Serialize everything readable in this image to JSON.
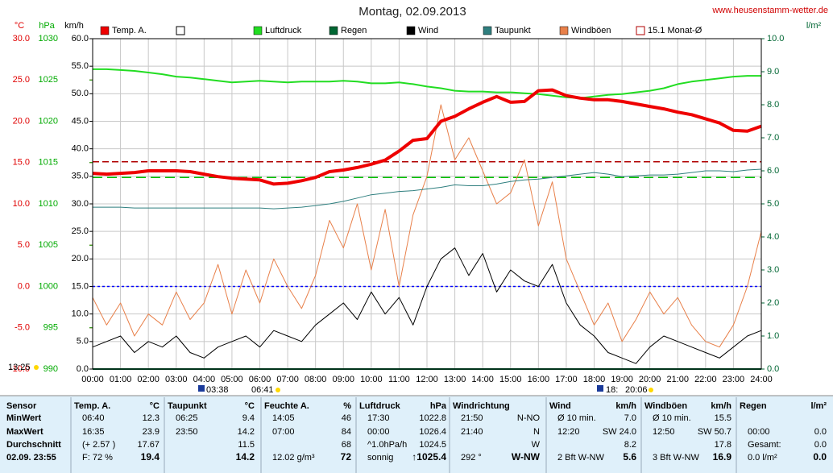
{
  "chart_data": {
    "type": "line",
    "title": "Montag, 02.09.2013",
    "source": "www.heusenstamm-wetter.de",
    "ylabel": "°C",
    "y2label": "hPa",
    "y3label": "km/h",
    "y4label": "l/m²",
    "x": [
      0,
      0.5,
      1,
      1.5,
      2,
      2.5,
      3,
      3.5,
      4,
      4.5,
      5,
      5.5,
      6,
      6.5,
      7,
      7.5,
      8,
      8.5,
      9,
      9.5,
      10,
      10.5,
      11,
      11.5,
      12,
      12.5,
      13,
      13.5,
      14,
      14.5,
      15,
      15.5,
      16,
      16.5,
      17,
      17.5,
      18,
      18.5,
      19,
      19.5,
      20,
      20.5,
      21,
      21.5,
      22,
      22.5,
      23,
      23.5,
      24
    ],
    "xlim": [
      0,
      24
    ],
    "xticks": [
      {
        "value": 0,
        "label": "00:00"
      },
      {
        "value": 1,
        "label": "01:00"
      },
      {
        "value": 2,
        "label": "02:00"
      },
      {
        "value": 3,
        "label": "03:00"
      },
      {
        "value": 4,
        "label": "04:00"
      },
      {
        "value": 5,
        "label": "05:00"
      },
      {
        "value": 6,
        "label": "06:00"
      },
      {
        "value": 7,
        "label": "07:00"
      },
      {
        "value": 8,
        "label": "08:00"
      },
      {
        "value": 9,
        "label": "09:00"
      },
      {
        "value": 10,
        "label": "10:00"
      },
      {
        "value": 11,
        "label": "11:00"
      },
      {
        "value": 12,
        "label": "12:00"
      },
      {
        "value": 13,
        "label": "13:00"
      },
      {
        "value": 14,
        "label": "14:00"
      },
      {
        "value": 15,
        "label": "15:00"
      },
      {
        "value": 16,
        "label": "16:00"
      },
      {
        "value": 17,
        "label": "17:00"
      },
      {
        "value": 18,
        "label": "18:00"
      },
      {
        "value": 19,
        "label": "19:00"
      },
      {
        "value": 20,
        "label": "20:00"
      },
      {
        "value": 21,
        "label": "21:00"
      },
      {
        "value": 22,
        "label": "22:00"
      },
      {
        "value": 23,
        "label": "23:00"
      },
      {
        "value": 24,
        "label": "24:00"
      }
    ],
    "ylim": [
      -10,
      30
    ],
    "yticks": [
      {
        "value": -10,
        "label": "-10.0"
      },
      {
        "value": -5,
        "label": "-5.0"
      },
      {
        "value": 0,
        "label": "0.0"
      },
      {
        "value": 5,
        "label": "5.0"
      },
      {
        "value": 10,
        "label": "10.0"
      },
      {
        "value": 15,
        "label": "15.0"
      },
      {
        "value": 20,
        "label": "20.0"
      },
      {
        "value": 25,
        "label": "25.0"
      },
      {
        "value": 30,
        "label": "30.0"
      }
    ],
    "y2lim": [
      990,
      1030
    ],
    "y2ticks": [
      990,
      995,
      1000,
      1005,
      1010,
      1015,
      1020,
      1025,
      1030
    ],
    "y3lim": [
      0,
      60
    ],
    "y3ticks": [
      {
        "value": 0,
        "label": "0.0"
      },
      {
        "value": 5,
        "label": "5.0"
      },
      {
        "value": 10,
        "label": "10.0"
      },
      {
        "value": 15,
        "label": "15.0"
      },
      {
        "value": 20,
        "label": "20.0"
      },
      {
        "value": 25,
        "label": "25.0"
      },
      {
        "value": 30,
        "label": "30.0"
      },
      {
        "value": 35,
        "label": "35.0"
      },
      {
        "value": 40,
        "label": "40.0"
      },
      {
        "value": 45,
        "label": "45.0"
      },
      {
        "value": 50,
        "label": "50.0"
      },
      {
        "value": 55,
        "label": "55.0"
      },
      {
        "value": 60,
        "label": "60.0"
      }
    ],
    "y4lim": [
      0,
      10
    ],
    "y4ticks": [
      {
        "value": 0,
        "label": "0.0"
      },
      {
        "value": 1,
        "label": "1.0"
      },
      {
        "value": 2,
        "label": "2.0"
      },
      {
        "value": 3,
        "label": "3.0"
      },
      {
        "value": 4,
        "label": "4.0"
      },
      {
        "value": 5,
        "label": "5.0"
      },
      {
        "value": 6,
        "label": "6.0"
      },
      {
        "value": 7,
        "label": "7.0"
      },
      {
        "value": 8,
        "label": "8.0"
      },
      {
        "value": 9,
        "label": "9.0"
      },
      {
        "value": 10,
        "label": "10.0"
      }
    ],
    "grid": true,
    "series": [
      {
        "name": "Temp. A.",
        "color": "#ee0000",
        "axis": "y",
        "values": [
          13.7,
          13.6,
          13.7,
          13.8,
          14.0,
          14.0,
          14.0,
          13.9,
          13.6,
          13.3,
          13.1,
          13.0,
          12.9,
          12.4,
          12.5,
          12.8,
          13.2,
          13.9,
          14.1,
          14.4,
          14.8,
          15.3,
          16.4,
          17.7,
          17.9,
          20.0,
          20.6,
          21.5,
          22.3,
          23.0,
          22.3,
          22.4,
          23.7,
          23.8,
          23.1,
          22.8,
          22.6,
          22.6,
          22.4,
          22.1,
          21.8,
          21.5,
          21.1,
          20.8,
          20.3,
          19.8,
          18.9,
          18.8,
          19.4
        ]
      },
      {
        "name": "Luftdruck",
        "color": "#22dd22",
        "axis": "y2",
        "values": [
          1026.3,
          1026.3,
          1026.2,
          1026.1,
          1025.9,
          1025.7,
          1025.4,
          1025.3,
          1025.1,
          1024.9,
          1024.7,
          1024.8,
          1024.9,
          1024.8,
          1024.7,
          1024.8,
          1024.8,
          1024.8,
          1024.9,
          1024.8,
          1024.6,
          1024.6,
          1024.7,
          1024.5,
          1024.2,
          1024.0,
          1023.7,
          1023.6,
          1023.6,
          1023.5,
          1023.5,
          1023.4,
          1023.3,
          1023.1,
          1022.9,
          1022.8,
          1023.0,
          1023.2,
          1023.3,
          1023.5,
          1023.7,
          1024.0,
          1024.5,
          1024.8,
          1025.0,
          1025.2,
          1025.4,
          1025.5,
          1025.5
        ]
      },
      {
        "name": "Regen",
        "color": "#006633",
        "axis": "y4",
        "values": [
          0,
          0,
          0,
          0,
          0,
          0,
          0,
          0,
          0,
          0,
          0,
          0,
          0,
          0,
          0,
          0,
          0,
          0,
          0,
          0,
          0,
          0,
          0,
          0,
          0,
          0,
          0,
          0,
          0,
          0,
          0,
          0,
          0,
          0,
          0,
          0,
          0,
          0,
          0,
          0,
          0,
          0,
          0,
          0,
          0,
          0,
          0,
          0,
          0
        ]
      },
      {
        "name": "Wind",
        "color": "#000000",
        "axis": "y3",
        "values": [
          4,
          5,
          6,
          3,
          5,
          4,
          6,
          3,
          2,
          4,
          5,
          6,
          4,
          7,
          6,
          5,
          8,
          10,
          12,
          9,
          14,
          10,
          13,
          8,
          15,
          20,
          22,
          17,
          21,
          14,
          18,
          16,
          15,
          19,
          12,
          8,
          6,
          3,
          2,
          1,
          4,
          6,
          5,
          4,
          3,
          2,
          4,
          6,
          7
        ]
      },
      {
        "name": "Taupunkt",
        "color": "#2f7f7f",
        "axis": "y",
        "values": [
          9.6,
          9.6,
          9.6,
          9.5,
          9.5,
          9.5,
          9.5,
          9.5,
          9.5,
          9.5,
          9.5,
          9.5,
          9.5,
          9.4,
          9.5,
          9.6,
          9.8,
          10.0,
          10.3,
          10.7,
          11.1,
          11.3,
          11.5,
          11.6,
          11.8,
          12.0,
          12.3,
          12.2,
          12.2,
          12.4,
          12.7,
          12.9,
          13.0,
          13.2,
          13.4,
          13.6,
          13.8,
          13.6,
          13.3,
          13.4,
          13.5,
          13.5,
          13.6,
          13.8,
          14.0,
          14.0,
          13.9,
          14.1,
          14.2
        ]
      },
      {
        "name": "Windböen",
        "color": "#e8804a",
        "axis": "y3",
        "values": [
          13,
          8,
          12,
          6,
          10,
          8,
          14,
          9,
          12,
          19,
          10,
          18,
          12,
          20,
          15,
          11,
          17,
          27,
          22,
          30,
          18,
          29,
          15,
          28,
          35,
          48,
          38,
          42,
          36,
          30,
          32,
          38,
          26,
          34,
          20,
          14,
          8,
          12,
          5,
          9,
          14,
          10,
          13,
          8,
          5,
          4,
          8,
          15,
          25
        ]
      }
    ],
    "reference_lines": [
      {
        "name": "15.1 Monat-Ø",
        "value": 15.1,
        "axis": "y",
        "color": "#b00000"
      },
      {
        "value": 1013.2,
        "axis": "y2",
        "color": "#00c000"
      },
      {
        "value": 0,
        "axis": "y",
        "color": "#0000ff"
      }
    ],
    "annotations": [
      "13:25",
      "03:38",
      "06:41",
      "18:",
      "20:06"
    ]
  },
  "table": {
    "row_labels": [
      "Sensor",
      "MinWert",
      "MaxWert",
      "Durchschnitt",
      "02.09. 23:55"
    ],
    "columns": [
      {
        "name": "Temp. A.",
        "unit": "°C",
        "rows": [
          [
            "06:40",
            "12.3"
          ],
          [
            "16:35",
            "23.9"
          ],
          [
            "(+ 2.57 )",
            "17.67"
          ],
          [
            "F: 72 %",
            "19.4"
          ]
        ]
      },
      {
        "name": "Taupunkt",
        "unit": "°C",
        "rows": [
          [
            "06:25",
            "9.4"
          ],
          [
            "23:50",
            "14.2"
          ],
          [
            "11.5"
          ],
          [
            "14.2"
          ]
        ]
      },
      {
        "name": "Feuchte A.",
        "unit": "%",
        "rows": [
          [
            "14:05",
            "46"
          ],
          [
            "07:00",
            "84"
          ],
          [
            "68"
          ],
          [
            "12.02 g/m³",
            "72"
          ]
        ]
      },
      {
        "name": "Luftdruck",
        "unit": "hPa",
        "rows": [
          [
            "17:30",
            "1022.8"
          ],
          [
            "00:00",
            "1026.4"
          ],
          [
            "^1.0hPa/h",
            "1024.5"
          ],
          [
            "sonnig",
            "↑1025.4"
          ]
        ]
      },
      {
        "name": "Windrichtung",
        "rows": [
          [
            "21:50",
            "N-NO"
          ],
          [
            "21:40",
            "N"
          ],
          [
            "W"
          ],
          [
            "292 °",
            "W-NW"
          ]
        ]
      },
      {
        "name": "Wind",
        "unit": "km/h",
        "rows": [
          [
            "Ø 10 min.",
            "7.0"
          ],
          [
            "12:20",
            "SW 24.0"
          ],
          [
            "8.2"
          ],
          [
            "2 Bft W-NW",
            "5.6"
          ]
        ]
      },
      {
        "name": "Windböen",
        "unit": "km/h",
        "rows": [
          [
            "Ø 10 min.",
            "15.5"
          ],
          [
            "12:50",
            "SW 50.7"
          ],
          [
            "17.8"
          ],
          [
            "3 Bft W-NW",
            "16.9"
          ]
        ]
      },
      {
        "name": "Regen",
        "unit": "l/m²",
        "rows": [
          [],
          [
            "00:00",
            "0.0"
          ],
          [
            "Gesamt:",
            "0.0"
          ],
          [
            "0.0 l/m²",
            "0.0"
          ]
        ]
      }
    ]
  }
}
